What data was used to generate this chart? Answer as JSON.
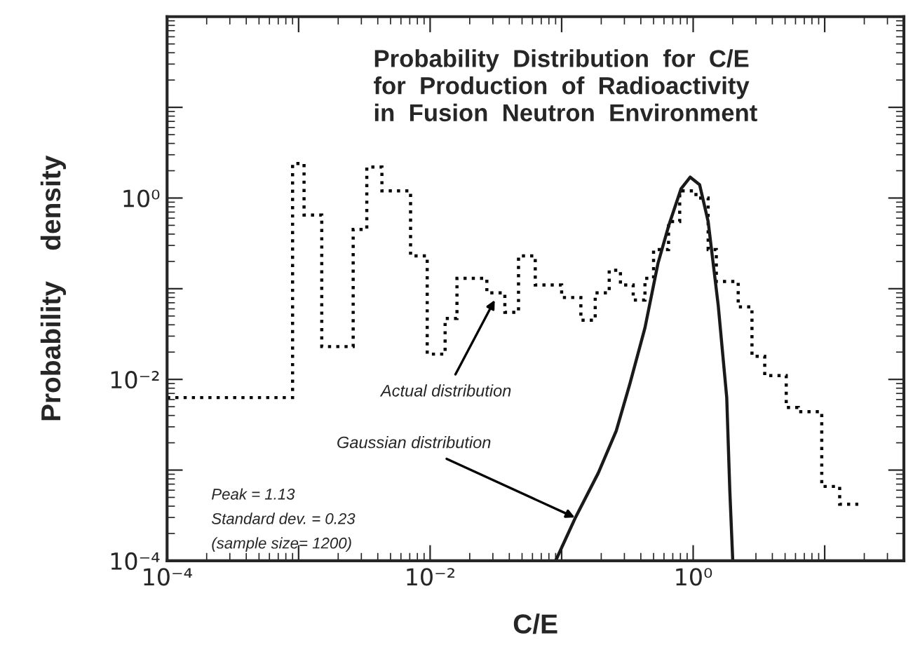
{
  "chart_data": {
    "type": "histogram",
    "title": "Probability  Distribution  for  C/E\nfor  Production  of  Radioactivity\nin  Fusion  Neutron  Environment",
    "xlabel": "C/E",
    "ylabel": "Probability    density",
    "log": "xy",
    "series": [
      {
        "color": "#000000",
        "line_style": "dotted",
        "bins": [
          0.0001,
          0.0009,
          0.0011,
          0.0015,
          0.0026,
          0.0033,
          0.0043,
          0.0071,
          0.0095,
          0.013,
          0.016,
          0.027,
          0.037,
          0.047,
          0.063,
          0.1,
          0.14,
          0.18,
          0.23,
          0.28,
          0.35,
          0.43,
          0.5,
          0.65,
          0.79,
          1.05,
          1.3,
          1.5,
          2.2,
          2.8,
          3.5,
          5.1,
          6.3,
          9.5,
          13,
          18
        ],
        "values": [
          0.0063,
          2.4,
          0.65,
          0.023,
          0.45,
          2.2,
          1.2,
          0.23,
          0.019,
          0.047,
          0.13,
          0.09,
          0.055,
          0.23,
          0.11,
          0.08,
          0.045,
          0.09,
          0.16,
          0.11,
          0.075,
          0.13,
          0.27,
          0.55,
          1.2,
          1.0,
          0.27,
          0.12,
          0.063,
          0.018,
          0.011,
          0.0049,
          0.0044,
          0.00066,
          0.00042
        ]
      },
      {
        "type": "line",
        "color": "#1a1a1a",
        "line_style": "solid",
        "x": [
          0.09,
          0.126,
          0.19,
          0.26,
          0.33,
          0.43,
          0.54,
          0.65,
          0.81,
          0.95,
          1.12,
          1.3,
          1.55,
          1.8,
          1.9,
          2.0
        ],
        "values": [
          0.0001,
          0.00029,
          0.00093,
          0.0027,
          0.0089,
          0.037,
          0.19,
          0.49,
          1.27,
          1.7,
          1.4,
          0.55,
          0.066,
          0.0063,
          0.00059,
          0.0001
        ]
      }
    ],
    "xlim": [
      0.0001,
      40
    ],
    "ylim": [
      0.0001,
      100
    ],
    "xticks": [
      {
        "value": 0.0001,
        "label": "10⁻⁴"
      },
      {
        "value": 0.001,
        "label": null
      },
      {
        "value": 0.01,
        "label": "10⁻²"
      },
      {
        "value": 0.1,
        "label": null
      },
      {
        "value": 1,
        "label": "10⁰"
      },
      {
        "value": 10,
        "label": null
      }
    ],
    "yticks": [
      {
        "value": 0.0001,
        "label": "10⁻⁴"
      },
      {
        "value": 0.001,
        "label": null
      },
      {
        "value": 0.01,
        "label": "10⁻²"
      },
      {
        "value": 0.1,
        "label": null
      },
      {
        "value": 1,
        "label": "10⁰"
      },
      {
        "value": 10,
        "label": null
      },
      {
        "value": 100,
        "label": null
      }
    ],
    "annotations": [
      {
        "text": "Actual distribution",
        "x": 0.031,
        "y": 0.075
      },
      {
        "text": "Gaussian distribution",
        "x": 0.126,
        "y": 0.0003
      },
      "Peak = 1.13",
      "Standard dev. = 0.23",
      "(sample size= 1200)"
    ],
    "grid": false,
    "legend": false
  }
}
